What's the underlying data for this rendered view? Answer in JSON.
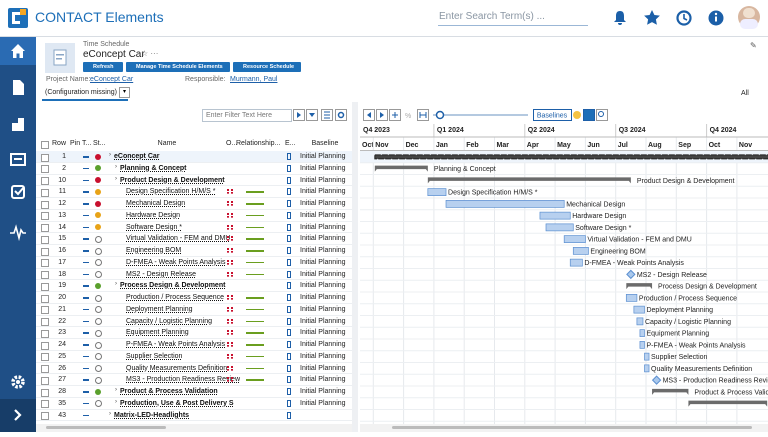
{
  "header": {
    "app_title": "CONTACT Elements",
    "search_placeholder": "Enter Search Term(s) ..."
  },
  "object": {
    "type": "Time Schedule",
    "name": "eConcept Car",
    "actions": [
      "Refresh",
      "Manage Time Schedule Elements",
      "Resource Schedule"
    ],
    "project_label": "Project Name:",
    "project": "eConcept Car",
    "responsible_label": "Responsible:",
    "responsible": "Murmann, Paul"
  },
  "tabs": {
    "active": "(Configuration missing)",
    "filter": "All"
  },
  "table": {
    "filter_placeholder": "Enter Filter Text Here",
    "columns": [
      "Row",
      "Pin",
      "T...",
      "St...",
      "Name",
      "O...",
      "Relationship...",
      "E...",
      "Baseline"
    ],
    "rows": [
      {
        "row": 1,
        "name": "eConcept Car",
        "level": 0,
        "bold": true,
        "status": "red",
        "baseline": "Initial Planning",
        "kind": "project",
        "start": 1.05,
        "end": 15
      },
      {
        "row": 2,
        "name": "Planning & Concept",
        "level": 1,
        "bold": true,
        "status": "green",
        "baseline": "Initial Planning",
        "kind": "summary",
        "start": 1.05,
        "end": 2.8
      },
      {
        "row": 10,
        "name": "Product Design & Development",
        "level": 1,
        "bold": true,
        "status": "red",
        "baseline": "Initial Planning",
        "kind": "summary",
        "start": 2.8,
        "end": 9.5
      },
      {
        "row": 11,
        "name": "Design Specification H/M/S *",
        "level": 2,
        "bold": false,
        "status": "yellow",
        "baseline": "Initial Planning",
        "kind": "task",
        "start": 2.8,
        "end": 3.4
      },
      {
        "row": 12,
        "name": "Mechanical Design",
        "level": 2,
        "bold": false,
        "status": "red",
        "baseline": "Initial Planning",
        "kind": "task",
        "start": 3.4,
        "end": 7.3
      },
      {
        "row": 13,
        "name": "Hardware Design",
        "level": 2,
        "bold": false,
        "status": "yellow",
        "baseline": "Initial Planning",
        "kind": "task",
        "start": 6.5,
        "end": 7.5
      },
      {
        "row": 14,
        "name": "Software Design *",
        "level": 2,
        "bold": false,
        "status": "yellow",
        "baseline": "Initial Planning",
        "kind": "task",
        "start": 6.7,
        "end": 7.6
      },
      {
        "row": 15,
        "name": "Virtual Validation - FEM and DMU",
        "level": 2,
        "bold": false,
        "status": "open",
        "baseline": "Initial Planning",
        "kind": "task",
        "start": 7.3,
        "end": 8.0
      },
      {
        "row": 16,
        "name": "Engineering BOM",
        "level": 2,
        "bold": false,
        "status": "open",
        "baseline": "Initial Planning",
        "kind": "task",
        "start": 7.6,
        "end": 8.1
      },
      {
        "row": 17,
        "name": "D-FMEA - Weak Points Analysis",
        "level": 2,
        "bold": false,
        "status": "open",
        "baseline": "Initial Planning",
        "kind": "task",
        "start": 7.5,
        "end": 7.9
      },
      {
        "row": 18,
        "name": "MS2 - Design Release",
        "level": 2,
        "bold": false,
        "status": "open",
        "baseline": "Initial Planning",
        "kind": "milestone",
        "start": 9.5
      },
      {
        "row": 19,
        "name": "Process Design & Development",
        "level": 1,
        "bold": true,
        "status": "green",
        "baseline": "Initial Planning",
        "kind": "summary",
        "start": 9.35,
        "end": 10.2
      },
      {
        "row": 20,
        "name": "Production / Process Sequence",
        "level": 2,
        "bold": false,
        "status": "open",
        "baseline": "Initial Planning",
        "kind": "task",
        "start": 9.35,
        "end": 9.7
      },
      {
        "row": 21,
        "name": "Deployment Planning",
        "level": 2,
        "bold": false,
        "status": "open",
        "baseline": "Initial Planning",
        "kind": "task",
        "start": 9.6,
        "end": 9.95
      },
      {
        "row": 22,
        "name": "Capacity / Logistic Planning",
        "level": 2,
        "bold": false,
        "status": "open",
        "baseline": "Initial Planning",
        "kind": "task",
        "start": 9.7,
        "end": 9.9
      },
      {
        "row": 23,
        "name": "Equipment Planning",
        "level": 2,
        "bold": false,
        "status": "open",
        "baseline": "Initial Planning",
        "kind": "task",
        "start": 9.8,
        "end": 9.95
      },
      {
        "row": 24,
        "name": "P-FMEA - Weak Points Analysis",
        "level": 2,
        "bold": false,
        "status": "open",
        "baseline": "Initial Planning",
        "kind": "task",
        "start": 9.8,
        "end": 9.95
      },
      {
        "row": 25,
        "name": "Supplier Selection",
        "level": 2,
        "bold": false,
        "status": "open",
        "baseline": "Initial Planning",
        "kind": "task",
        "start": 9.95,
        "end": 10.1
      },
      {
        "row": 26,
        "name": "Quality Measurements Definition",
        "level": 2,
        "bold": false,
        "status": "open",
        "baseline": "Initial Planning",
        "kind": "task",
        "start": 9.95,
        "end": 10.1
      },
      {
        "row": 27,
        "name": "MS3 - Production Readiness Review",
        "level": 2,
        "bold": false,
        "status": "open",
        "baseline": "Initial Planning",
        "kind": "milestone",
        "start": 10.35
      },
      {
        "row": 28,
        "name": "Product & Process Validation",
        "level": 1,
        "bold": true,
        "status": "green",
        "baseline": "Initial Planning",
        "kind": "summary",
        "start": 10.2,
        "end": 11.4
      },
      {
        "row": 35,
        "name": "Production, Use & Post Delivery S",
        "level": 1,
        "bold": true,
        "status": "open",
        "baseline": "Initial Planning",
        "kind": "summary",
        "start": 11.4,
        "end": 14
      },
      {
        "row": 43,
        "name": "Matrix-LED-Headlights",
        "level": 0,
        "bold": true,
        "status": "none"
      }
    ]
  },
  "gantt": {
    "button": "Baselines",
    "quarters": [
      "Q4 2023",
      "Q1 2024",
      "Q2 2024",
      "Q3 2024",
      "Q4 2024"
    ],
    "months": [
      "Oct",
      "Nov",
      "Dec",
      "Jan",
      "Feb",
      "Mar",
      "Apr",
      "May",
      "Jun",
      "Jul",
      "Aug",
      "Sep",
      "Oct",
      "Nov"
    ]
  }
}
